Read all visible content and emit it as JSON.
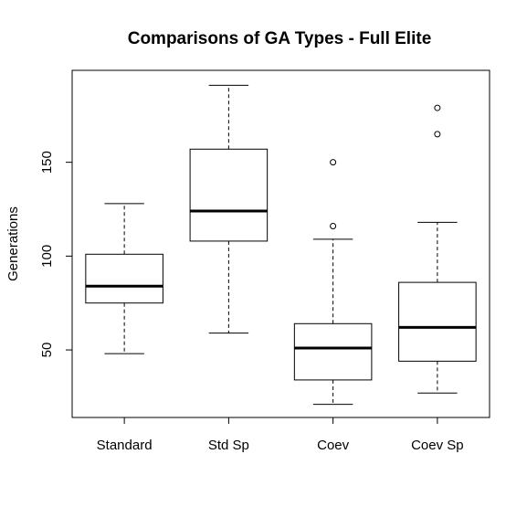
{
  "chart_data": {
    "type": "boxplot",
    "title": "Comparisons of GA Types - Full Elite",
    "xlabel": "",
    "ylabel": "Generations",
    "ylim": [
      14,
      199
    ],
    "yticks": [
      50,
      100,
      150
    ],
    "grid": false,
    "categories": [
      "Standard",
      "Std Sp",
      "Coev",
      "Coev Sp"
    ],
    "boxes": [
      {
        "category": "Standard",
        "lower_whisker": 48,
        "q1": 75,
        "median": 84,
        "q3": 101,
        "upper_whisker": 128,
        "outliers": []
      },
      {
        "category": "Std Sp",
        "lower_whisker": 59,
        "q1": 108,
        "median": 124,
        "q3": 157,
        "upper_whisker": 191,
        "outliers": []
      },
      {
        "category": "Coev",
        "lower_whisker": 21,
        "q1": 34,
        "median": 51,
        "q3": 64,
        "upper_whisker": 109,
        "outliers": [
          116,
          150
        ]
      },
      {
        "category": "Coev Sp",
        "lower_whisker": 27,
        "q1": 44,
        "median": 62,
        "q3": 86,
        "upper_whisker": 118,
        "outliers": [
          165,
          179
        ]
      }
    ]
  }
}
